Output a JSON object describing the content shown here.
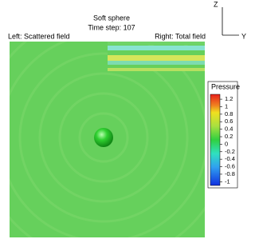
{
  "header": {
    "title": "Soft sphere",
    "subtitle": "Time step: 107"
  },
  "labels": {
    "left": "Left: Scattered field",
    "right": "Right: Total field"
  },
  "axes": {
    "z": "Z",
    "y": "Y"
  },
  "colorbar": {
    "title": "Pressure",
    "lim": [
      -1.1,
      1.33
    ],
    "ticks": [
      1.2,
      1,
      0.8,
      0.6,
      0.4,
      0.2,
      0,
      -0.2,
      -0.4,
      -0.6,
      -0.8,
      -1
    ]
  }
}
